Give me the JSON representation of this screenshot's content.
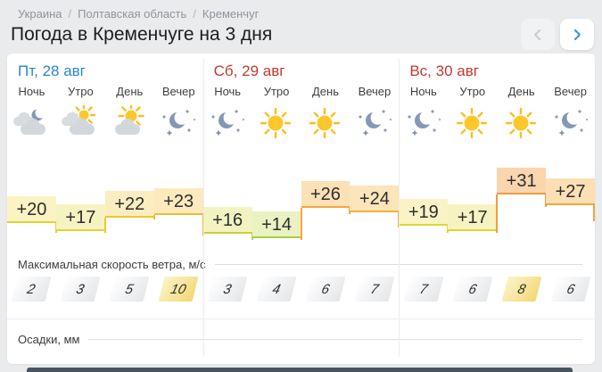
{
  "page": {
    "background": "#e9ebed",
    "card_background": "#ffffff",
    "footer_bar_color": "#4a5561"
  },
  "breadcrumb": {
    "separator": "/",
    "items": [
      "Украина",
      "Полтавская область",
      "Кременчуг"
    ]
  },
  "header": {
    "title": "Погода в Кременчуге на 3 дня"
  },
  "nav": {
    "prev_icon": "chevron-left",
    "next_icon": "chevron-right",
    "prev_color": "#c6ccd2",
    "next_color": "#3f93e0"
  },
  "days": [
    {
      "label": "Пт, 28 авг",
      "label_color": "#2b85d3",
      "periods": [
        "Ночь",
        "Утро",
        "День",
        "Вечер"
      ],
      "icons": [
        "moon-clouds",
        "sun-clouds",
        "sun-cloud",
        "moon-stars"
      ]
    },
    {
      "label": "Сб, 29 авг",
      "label_color": "#c43a31",
      "periods": [
        "Ночь",
        "Утро",
        "День",
        "Вечер"
      ],
      "icons": [
        "moon-stars",
        "sun",
        "sun",
        "moon-stars"
      ]
    },
    {
      "label": "Вс, 30 авг",
      "label_color": "#c43a31",
      "periods": [
        "Ночь",
        "Утро",
        "День",
        "Вечер"
      ],
      "icons": [
        "moon-stars",
        "sun",
        "sun",
        "moon-stars"
      ]
    }
  ],
  "chart_data": [
    {
      "type": "area",
      "name": "air-temperature-steps",
      "categories": [
        "Пт Ночь",
        "Пт Утро",
        "Пт День",
        "Пт Вечер",
        "Сб Ночь",
        "Сб Утро",
        "Сб День",
        "Сб Вечер",
        "Вс Ночь",
        "Вс Утро",
        "Вс День",
        "Вс Вечер"
      ],
      "values": [
        20,
        17,
        22,
        23,
        16,
        14,
        26,
        24,
        19,
        17,
        31,
        27
      ],
      "labels": [
        "+20",
        "+17",
        "+22",
        "+23",
        "+16",
        "+14",
        "+26",
        "+24",
        "+19",
        "+17",
        "+31",
        "+27"
      ],
      "ylim": [
        14,
        31
      ],
      "block_colors": [
        {
          "bg": "#fbf3c4",
          "line": "#e0d52e"
        },
        {
          "bg": "#f5f3c2",
          "line": "#d9d72e"
        },
        {
          "bg": "#fcedc0",
          "line": "#edc72f"
        },
        {
          "bg": "#fce9bd",
          "line": "#f0bc33"
        },
        {
          "bg": "#f2f3c1",
          "line": "#c6d336"
        },
        {
          "bg": "#eaf1c3",
          "line": "#a9cd40"
        },
        {
          "bg": "#fce1b6",
          "line": "#f4a83c"
        },
        {
          "bg": "#fce5ba",
          "line": "#f2b138"
        },
        {
          "bg": "#faf3c5",
          "line": "#dfd72e"
        },
        {
          "bg": "#f5f3c2",
          "line": "#d9d72e"
        },
        {
          "bg": "#fbd5ae",
          "line": "#f19a3e"
        },
        {
          "bg": "#fcdfb4",
          "line": "#f4a43c"
        }
      ]
    },
    {
      "type": "table",
      "name": "max-wind-speed",
      "label": "Максимальная скорость ветра, м/с",
      "categories": [
        "Пт Ночь",
        "Пт Утро",
        "Пт День",
        "Пт Вечер",
        "Сб Ночь",
        "Сб Утро",
        "Сб День",
        "Сб Вечер",
        "Вс Ночь",
        "Вс Утро",
        "Вс День",
        "Вс Вечер"
      ],
      "values": [
        2,
        3,
        5,
        10,
        3,
        4,
        6,
        7,
        7,
        6,
        8,
        6
      ],
      "highlight_indices": [
        3,
        10
      ]
    }
  ],
  "precipitation": {
    "label": "Осадки, мм"
  }
}
